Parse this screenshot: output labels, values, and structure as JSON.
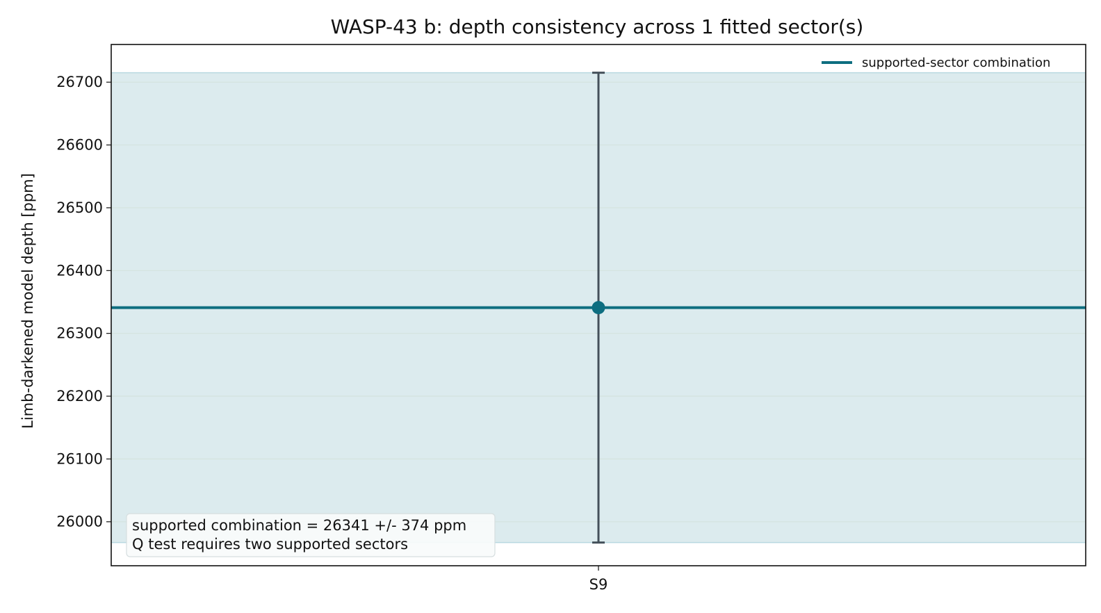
{
  "chart_data": {
    "type": "scatter",
    "title": "WASP-43 b: depth consistency across 1 fitted sector(s)",
    "xlabel": "",
    "ylabel": "Limb-darkened model depth [ppm]",
    "categories": [
      "S9"
    ],
    "points": [
      {
        "category": "S9",
        "value": 26341,
        "err_low": 374,
        "err_high": 374
      }
    ],
    "combination": {
      "value": 26341,
      "err": 374,
      "legend_label": "supported-sector combination"
    },
    "ylim": [
      25930,
      26760
    ],
    "yticks": [
      26000,
      26100,
      26200,
      26300,
      26400,
      26500,
      26600,
      26700
    ],
    "grid": "horizontal",
    "legend_position": "top-right",
    "annotation": [
      "supported combination = 26341 +/- 374 ppm",
      "Q test requires two supported sectors"
    ],
    "colors": {
      "combination": "#0e6e80",
      "band": "#dcebee",
      "band_edge": "#b9d9e0",
      "point": "#0e6e80",
      "errorbar": "#44505a",
      "grid": "#d4e3df"
    }
  }
}
